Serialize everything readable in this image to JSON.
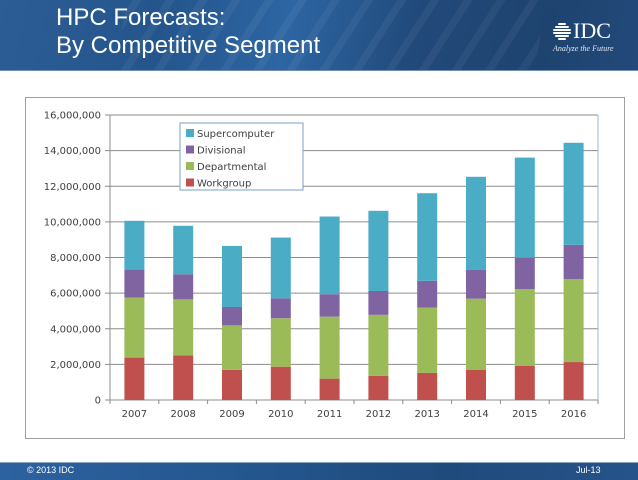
{
  "header": {
    "title_line1": "HPC Forecasts:",
    "title_line2": "By Competitive Segment",
    "logo_text": "IDC",
    "logo_tagline": "Analyze the Future"
  },
  "footer": {
    "copyright": "© 2013 IDC",
    "date": "Jul-13"
  },
  "chart_data": {
    "type": "bar",
    "stacked": true,
    "title": "",
    "xlabel": "",
    "ylabel": "",
    "categories": [
      "2007",
      "2008",
      "2009",
      "2010",
      "2011",
      "2012",
      "2013",
      "2014",
      "2015",
      "2016"
    ],
    "series": [
      {
        "name": "Workgroup",
        "color": "#C0504D",
        "values": [
          2380000,
          2510000,
          1690000,
          1870000,
          1200000,
          1350000,
          1520000,
          1700000,
          1910000,
          2130000
        ]
      },
      {
        "name": "Departmental",
        "color": "#9BBB59",
        "values": [
          3370000,
          3140000,
          2500000,
          2720000,
          3480000,
          3430000,
          3670000,
          3990000,
          4310000,
          4650000
        ]
      },
      {
        "name": "Divisional",
        "color": "#8064A2",
        "values": [
          1590000,
          1410000,
          1030000,
          1120000,
          1260000,
          1340000,
          1500000,
          1610000,
          1770000,
          1930000
        ]
      },
      {
        "name": "Supercomputer",
        "color": "#4BACC6",
        "values": [
          2720000,
          2720000,
          3430000,
          3410000,
          4360000,
          4500000,
          4920000,
          5230000,
          5620000,
          5730000
        ]
      }
    ],
    "legend_order": [
      "Supercomputer",
      "Divisional",
      "Departmental",
      "Workgroup"
    ],
    "legend_position": "top-left-inside",
    "ylim": [
      0,
      16000000
    ],
    "yticks": [
      0,
      2000000,
      4000000,
      6000000,
      8000000,
      10000000,
      12000000,
      14000000,
      16000000
    ],
    "ytick_labels": [
      "0",
      "2,000,000",
      "4,000,000",
      "6,000,000",
      "8,000,000",
      "10,000,000",
      "12,000,000",
      "14,000,000",
      "16,000,000"
    ],
    "grid": true,
    "grid_color": "#8c8c8c"
  }
}
